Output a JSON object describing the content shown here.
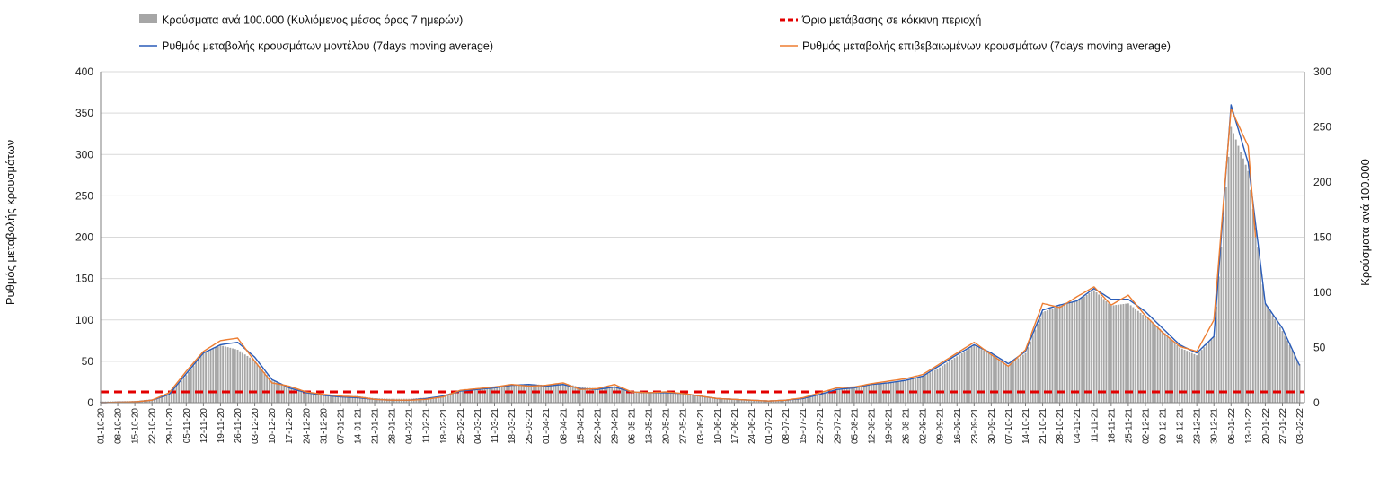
{
  "chart_data": {
    "type": "bar+line",
    "title": "",
    "ylabel": "Ρυθμός μεταβολής κρουσμάτων",
    "ylabel_right": "Κρούσματα ανά 100.000",
    "ylim": [
      0,
      400
    ],
    "ylim_right": [
      0,
      300
    ],
    "yticks": [
      0,
      50,
      100,
      150,
      200,
      250,
      300,
      350,
      400
    ],
    "yticks_right": [
      0,
      50,
      100,
      150,
      200,
      250,
      300
    ],
    "grid": true,
    "legend_position": "top",
    "x_start": "2020-10-01",
    "x_end": "2022-02-05",
    "x_tick_labels": [
      "01-10-20",
      "08-10-20",
      "15-10-20",
      "22-10-20",
      "29-10-20",
      "05-11-20",
      "12-11-20",
      "19-11-20",
      "26-11-20",
      "03-12-20",
      "10-12-20",
      "17-12-20",
      "24-12-20",
      "31-12-20",
      "07-01-21",
      "14-01-21",
      "21-01-21",
      "28-01-21",
      "04-02-21",
      "11-02-21",
      "18-02-21",
      "25-02-21",
      "04-03-21",
      "11-03-21",
      "18-03-21",
      "25-03-21",
      "01-04-21",
      "08-04-21",
      "15-04-21",
      "22-04-21",
      "29-04-21",
      "06-05-21",
      "13-05-21",
      "20-05-21",
      "27-05-21",
      "03-06-21",
      "10-06-21",
      "17-06-21",
      "24-06-21",
      "01-07-21",
      "08-07-21",
      "15-07-21",
      "22-07-21",
      "29-07-21",
      "05-08-21",
      "12-08-21",
      "19-08-21",
      "26-08-21",
      "02-09-21",
      "09-09-21",
      "16-09-21",
      "23-09-21",
      "30-09-21",
      "07-10-21",
      "14-10-21",
      "21-10-21",
      "28-10-21",
      "04-11-21",
      "11-11-21",
      "18-11-21",
      "25-11-21",
      "02-12-21",
      "09-12-21",
      "16-12-21",
      "23-12-21",
      "30-12-21",
      "06-01-22",
      "13-01-22",
      "20-01-22",
      "27-01-22",
      "03-02-22"
    ],
    "series": [
      {
        "name": "Κρούσματα ανά 100.000 (Κυλιόμενος μέσος όρος 7 ημερών)",
        "type": "bar",
        "axis": "right",
        "color": "#a6a6a6",
        "points": [
          [
            "2020-10-01",
            1
          ],
          [
            "2020-10-15",
            1.5
          ],
          [
            "2020-10-22",
            3
          ],
          [
            "2020-10-29",
            8
          ],
          [
            "2020-11-05",
            25
          ],
          [
            "2020-11-12",
            45
          ],
          [
            "2020-11-19",
            52
          ],
          [
            "2020-11-26",
            48
          ],
          [
            "2020-12-03",
            38
          ],
          [
            "2020-12-10",
            20
          ],
          [
            "2020-12-17",
            14
          ],
          [
            "2020-12-24",
            9
          ],
          [
            "2020-12-31",
            7
          ],
          [
            "2021-01-07",
            6
          ],
          [
            "2021-01-14",
            6
          ],
          [
            "2021-01-21",
            4
          ],
          [
            "2021-01-28",
            3.5
          ],
          [
            "2021-02-04",
            3.5
          ],
          [
            "2021-02-11",
            4.5
          ],
          [
            "2021-02-18",
            6
          ],
          [
            "2021-02-25",
            11
          ],
          [
            "2021-03-04",
            13
          ],
          [
            "2021-03-11",
            14
          ],
          [
            "2021-03-18",
            16
          ],
          [
            "2021-03-25",
            17
          ],
          [
            "2021-04-01",
            16
          ],
          [
            "2021-04-08",
            18
          ],
          [
            "2021-04-15",
            14
          ],
          [
            "2021-04-22",
            13
          ],
          [
            "2021-04-29",
            15
          ],
          [
            "2021-05-06",
            10
          ],
          [
            "2021-05-13",
            9
          ],
          [
            "2021-05-20",
            9
          ],
          [
            "2021-05-27",
            8
          ],
          [
            "2021-06-03",
            6
          ],
          [
            "2021-06-10",
            4
          ],
          [
            "2021-06-17",
            3
          ],
          [
            "2021-06-24",
            2.5
          ],
          [
            "2021-07-01",
            2
          ],
          [
            "2021-07-08",
            2.5
          ],
          [
            "2021-07-15",
            4
          ],
          [
            "2021-07-22",
            7
          ],
          [
            "2021-07-29",
            12
          ],
          [
            "2021-08-05",
            14
          ],
          [
            "2021-08-12",
            17
          ],
          [
            "2021-08-19",
            18
          ],
          [
            "2021-08-26",
            20
          ],
          [
            "2021-09-02",
            24
          ],
          [
            "2021-09-09",
            32
          ],
          [
            "2021-09-16",
            42
          ],
          [
            "2021-09-23",
            52
          ],
          [
            "2021-09-30",
            44
          ],
          [
            "2021-10-07",
            34
          ],
          [
            "2021-10-14",
            45
          ],
          [
            "2021-10-21",
            82
          ],
          [
            "2021-10-28",
            88
          ],
          [
            "2021-11-04",
            92
          ],
          [
            "2021-11-11",
            102
          ],
          [
            "2021-11-18",
            88
          ],
          [
            "2021-11-25",
            90
          ],
          [
            "2021-12-02",
            78
          ],
          [
            "2021-12-09",
            65
          ],
          [
            "2021-12-16",
            50
          ],
          [
            "2021-12-23",
            43
          ],
          [
            "2021-12-30",
            60
          ],
          [
            "2022-01-06",
            250
          ],
          [
            "2022-01-13",
            210
          ],
          [
            "2022-01-20",
            90
          ],
          [
            "2022-01-27",
            65
          ],
          [
            "2022-02-03",
            35
          ]
        ]
      },
      {
        "name": "Όριο μετάβασης σε κόκκινη περιοχή",
        "type": "hline",
        "axis": "left",
        "color": "#e30000",
        "value": 13
      },
      {
        "name": "Ρυθμός μεταβολής κρουσμάτων μοντέλου (7days moving average)",
        "type": "line",
        "axis": "left",
        "color": "#2a5cb8",
        "points": [
          [
            "2020-10-01",
            0
          ],
          [
            "2020-10-15",
            1
          ],
          [
            "2020-10-22",
            3
          ],
          [
            "2020-10-29",
            10
          ],
          [
            "2020-11-05",
            35
          ],
          [
            "2020-11-12",
            60
          ],
          [
            "2020-11-19",
            70
          ],
          [
            "2020-11-26",
            73
          ],
          [
            "2020-12-03",
            55
          ],
          [
            "2020-12-10",
            28
          ],
          [
            "2020-12-17",
            18
          ],
          [
            "2020-12-24",
            12
          ],
          [
            "2020-12-31",
            9
          ],
          [
            "2021-01-07",
            7
          ],
          [
            "2021-01-14",
            6
          ],
          [
            "2021-01-21",
            4
          ],
          [
            "2021-01-28",
            3
          ],
          [
            "2021-02-04",
            3
          ],
          [
            "2021-02-11",
            5
          ],
          [
            "2021-02-18",
            8
          ],
          [
            "2021-02-25",
            14
          ],
          [
            "2021-03-04",
            16
          ],
          [
            "2021-03-11",
            18
          ],
          [
            "2021-03-18",
            21
          ],
          [
            "2021-03-25",
            22
          ],
          [
            "2021-04-01",
            20
          ],
          [
            "2021-04-08",
            22
          ],
          [
            "2021-04-15",
            17
          ],
          [
            "2021-04-22",
            16
          ],
          [
            "2021-04-29",
            19
          ],
          [
            "2021-05-06",
            13
          ],
          [
            "2021-05-13",
            12
          ],
          [
            "2021-05-20",
            12
          ],
          [
            "2021-05-27",
            11
          ],
          [
            "2021-06-03",
            8
          ],
          [
            "2021-06-10",
            5
          ],
          [
            "2021-06-17",
            4
          ],
          [
            "2021-06-24",
            3
          ],
          [
            "2021-07-01",
            2
          ],
          [
            "2021-07-08",
            3
          ],
          [
            "2021-07-15",
            5
          ],
          [
            "2021-07-22",
            10
          ],
          [
            "2021-07-29",
            16
          ],
          [
            "2021-08-05",
            18
          ],
          [
            "2021-08-12",
            22
          ],
          [
            "2021-08-19",
            24
          ],
          [
            "2021-08-26",
            27
          ],
          [
            "2021-09-02",
            32
          ],
          [
            "2021-09-09",
            45
          ],
          [
            "2021-09-16",
            58
          ],
          [
            "2021-09-23",
            70
          ],
          [
            "2021-09-30",
            60
          ],
          [
            "2021-10-07",
            47
          ],
          [
            "2021-10-14",
            62
          ],
          [
            "2021-10-21",
            112
          ],
          [
            "2021-10-28",
            118
          ],
          [
            "2021-11-04",
            123
          ],
          [
            "2021-11-11",
            138
          ],
          [
            "2021-11-18",
            125
          ],
          [
            "2021-11-25",
            125
          ],
          [
            "2021-12-02",
            110
          ],
          [
            "2021-12-09",
            90
          ],
          [
            "2021-12-16",
            70
          ],
          [
            "2021-12-23",
            60
          ],
          [
            "2021-12-30",
            80
          ],
          [
            "2022-01-06",
            360
          ],
          [
            "2022-01-13",
            290
          ],
          [
            "2022-01-20",
            120
          ],
          [
            "2022-01-27",
            90
          ],
          [
            "2022-02-03",
            45
          ]
        ]
      },
      {
        "name": "Ρυθμός μεταβολής επιβεβαιωμένων κρουσμάτων (7days moving average)",
        "type": "line",
        "axis": "left",
        "color": "#ed7d31",
        "points": [
          [
            "2020-10-01",
            0
          ],
          [
            "2020-10-15",
            1
          ],
          [
            "2020-10-22",
            3
          ],
          [
            "2020-10-29",
            12
          ],
          [
            "2020-11-05",
            38
          ],
          [
            "2020-11-12",
            62
          ],
          [
            "2020-11-19",
            75
          ],
          [
            "2020-11-26",
            78
          ],
          [
            "2020-12-03",
            50
          ],
          [
            "2020-12-10",
            24
          ],
          [
            "2020-12-17",
            20
          ],
          [
            "2020-12-24",
            13
          ],
          [
            "2020-12-31",
            10
          ],
          [
            "2021-01-07",
            8
          ],
          [
            "2021-01-14",
            7
          ],
          [
            "2021-01-21",
            4
          ],
          [
            "2021-01-28",
            3
          ],
          [
            "2021-02-04",
            3
          ],
          [
            "2021-02-11",
            4
          ],
          [
            "2021-02-18",
            7
          ],
          [
            "2021-02-25",
            15
          ],
          [
            "2021-03-04",
            17
          ],
          [
            "2021-03-11",
            19
          ],
          [
            "2021-03-18",
            22
          ],
          [
            "2021-03-25",
            20
          ],
          [
            "2021-04-01",
            21
          ],
          [
            "2021-04-08",
            24
          ],
          [
            "2021-04-15",
            16
          ],
          [
            "2021-04-22",
            17
          ],
          [
            "2021-04-29",
            22
          ],
          [
            "2021-05-06",
            13
          ],
          [
            "2021-05-13",
            12
          ],
          [
            "2021-05-20",
            13
          ],
          [
            "2021-05-27",
            11
          ],
          [
            "2021-06-03",
            8
          ],
          [
            "2021-06-10",
            5
          ],
          [
            "2021-06-17",
            4
          ],
          [
            "2021-06-24",
            3
          ],
          [
            "2021-07-01",
            2
          ],
          [
            "2021-07-08",
            3
          ],
          [
            "2021-07-15",
            6
          ],
          [
            "2021-07-22",
            12
          ],
          [
            "2021-07-29",
            18
          ],
          [
            "2021-08-05",
            19
          ],
          [
            "2021-08-12",
            23
          ],
          [
            "2021-08-19",
            26
          ],
          [
            "2021-08-26",
            29
          ],
          [
            "2021-09-02",
            34
          ],
          [
            "2021-09-09",
            47
          ],
          [
            "2021-09-16",
            60
          ],
          [
            "2021-09-23",
            73
          ],
          [
            "2021-09-30",
            58
          ],
          [
            "2021-10-07",
            44
          ],
          [
            "2021-10-14",
            64
          ],
          [
            "2021-10-21",
            120
          ],
          [
            "2021-10-28",
            115
          ],
          [
            "2021-11-04",
            128
          ],
          [
            "2021-11-11",
            140
          ],
          [
            "2021-11-18",
            118
          ],
          [
            "2021-11-25",
            130
          ],
          [
            "2021-12-02",
            105
          ],
          [
            "2021-12-09",
            85
          ],
          [
            "2021-12-16",
            68
          ],
          [
            "2021-12-23",
            62
          ],
          [
            "2021-12-30",
            100
          ],
          [
            "2022-01-06",
            355
          ],
          [
            "2022-01-13",
            310
          ],
          [
            "2022-01-16",
            200
          ]
        ]
      }
    ]
  }
}
